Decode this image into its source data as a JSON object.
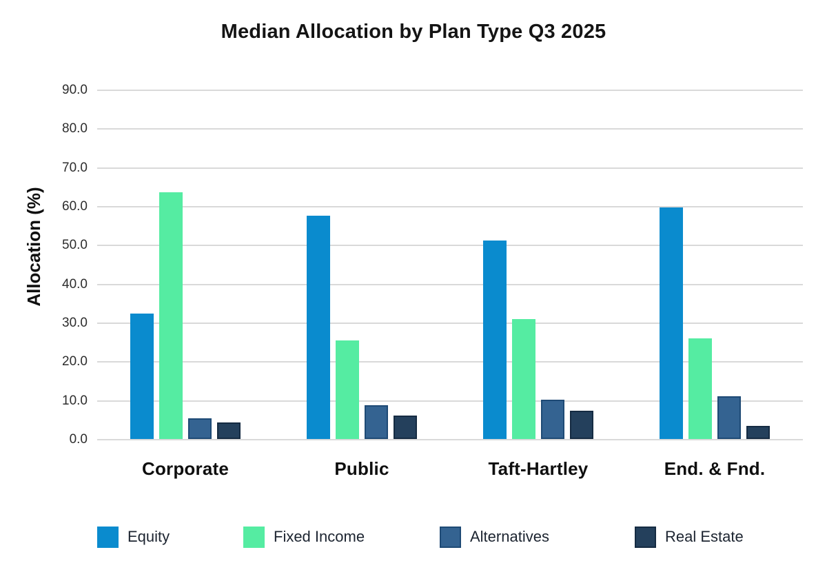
{
  "title": "Median Allocation by Plan Type Q3 2025",
  "chart_data": {
    "type": "bar",
    "title": "Median Allocation by Plan Type Q3 2025",
    "xlabel": "",
    "ylabel": "Allocation (%)",
    "categories": [
      "Corporate",
      "Public",
      "Taft-Hartley",
      "End. & Fnd."
    ],
    "series": [
      {
        "name": "Equity",
        "color": "#0a8bce",
        "values": [
          32.3,
          57.6,
          51.1,
          59.6
        ]
      },
      {
        "name": "Fixed Income",
        "color": "#55eca2",
        "values": [
          63.5,
          25.3,
          30.9,
          25.9
        ]
      },
      {
        "name": "Alternatives",
        "color": "#346391",
        "border_color": "#1e4a75",
        "values": [
          5.4,
          8.7,
          10.2,
          11.0
        ]
      },
      {
        "name": "Real Estate",
        "color": "#24405c",
        "border_color": "#152b42",
        "values": [
          4.2,
          6.0,
          7.3,
          3.3
        ]
      }
    ],
    "ylim": [
      0,
      90
    ],
    "ytick_step": 10,
    "ytick_format": "one_decimal",
    "grid": "horizontal-only",
    "gridline_color": "#d9d9d9",
    "background_color": "#ffffff",
    "legend_position": "bottom"
  }
}
